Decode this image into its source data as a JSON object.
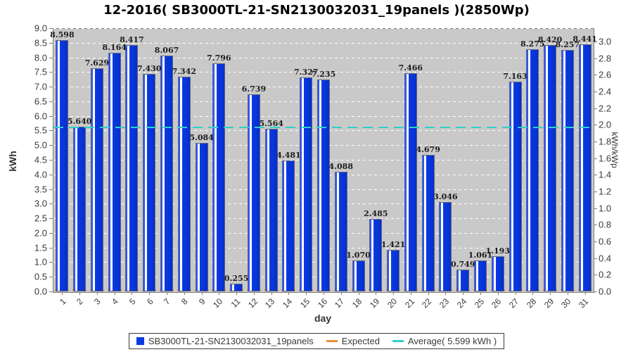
{
  "title": "12-2016( SB3000TL-21-SN2130032031_19panels )(2850Wp)",
  "colors": {
    "bar_blue": "#0b3ae6",
    "bar_highlight": "#ffffff",
    "expected_orange": "#ee8d33",
    "average_cyan": "#2fd0c8",
    "plot_background": "#c9c9c9",
    "grid_white": "#ffffff",
    "axis_gray": "#7e7e7e"
  },
  "chart_data": {
    "type": "bar",
    "title": "12-2016( SB3000TL-21-SN2130032031_19panels )(2850Wp)",
    "xlabel": "day",
    "ylabel": "kWh",
    "ylabel_right": "kWh/kWp",
    "ylim": [
      0,
      9.0
    ],
    "ylim_right": [
      0,
      3.16
    ],
    "y_ticks": [
      "0.0",
      "0.5",
      "1.0",
      "1.5",
      "2.0",
      "2.5",
      "3.0",
      "3.5",
      "4.0",
      "4.5",
      "5.0",
      "5.5",
      "6.0",
      "6.5",
      "7.0",
      "7.5",
      "8.0",
      "8.5",
      "9.0"
    ],
    "y_ticks_right": [
      "0.0",
      "0.2",
      "0.4",
      "0.6",
      "0.8",
      "1.0",
      "1.2",
      "1.4",
      "1.6",
      "1.8",
      "2.0",
      "2.2",
      "2.4",
      "2.6",
      "2.8",
      "3.0"
    ],
    "categories": [
      "1",
      "2",
      "3",
      "4",
      "5",
      "6",
      "7",
      "8",
      "9",
      "10",
      "11",
      "12",
      "13",
      "14",
      "15",
      "16",
      "17",
      "18",
      "19",
      "20",
      "21",
      "22",
      "23",
      "24",
      "25",
      "26",
      "27",
      "28",
      "29",
      "30",
      "31"
    ],
    "series": [
      {
        "name": "SB3000TL-21-SN2130032031_19panels",
        "color": "#0b3ae6",
        "values": [
          8.598,
          5.64,
          7.629,
          8.164,
          8.417,
          7.43,
          8.067,
          7.342,
          5.084,
          7.796,
          0.255,
          6.739,
          5.564,
          4.481,
          7.327,
          7.235,
          4.088,
          1.07,
          2.485,
          1.421,
          7.466,
          4.679,
          3.046,
          0.749,
          1.061,
          1.193,
          7.163,
          8.275,
          8.42,
          8.257,
          8.441
        ],
        "value_labels": [
          "8.598",
          "5.640",
          "7.629",
          "8.164",
          "8.417",
          "7.430",
          "8.067",
          "7.342",
          "5.084",
          "7.796",
          "0.255",
          "6.739",
          "5.564",
          "4.481",
          "7.327",
          "7.235",
          "4.088",
          "1.070",
          "2.485",
          "1.421",
          "7.466",
          "4.679",
          "3.046",
          "0.749",
          "1.061",
          "1.193",
          "7.163",
          "8.275",
          "8.420",
          "8.257",
          "8.441"
        ]
      }
    ],
    "expected_series": {
      "name": "Expected",
      "color": "#ee8d33",
      "shape": "baseline-segments"
    },
    "average_line": {
      "name": "Average( 5.599 kWh )",
      "value": 5.599,
      "color": "#2fd0c8",
      "style": "dashed"
    },
    "grid": {
      "horizontal": true,
      "vertical": false,
      "color": "#ffffff",
      "style": "dashed"
    },
    "legend_position": "bottom"
  },
  "axes": {
    "left": {
      "label": "kWh"
    },
    "right": {
      "label": "kWh/kWp"
    },
    "bottom": {
      "label": "day"
    }
  },
  "legend": {
    "items": [
      {
        "label": "SB3000TL-21-SN2130032031_19panels",
        "swatch": "square",
        "color": "#0b3ae6"
      },
      {
        "label": "Expected",
        "swatch": "line",
        "color": "#ee8d33"
      },
      {
        "label": "Average( 5.599 kWh )",
        "swatch": "line",
        "color": "#2fd0c8"
      }
    ]
  }
}
